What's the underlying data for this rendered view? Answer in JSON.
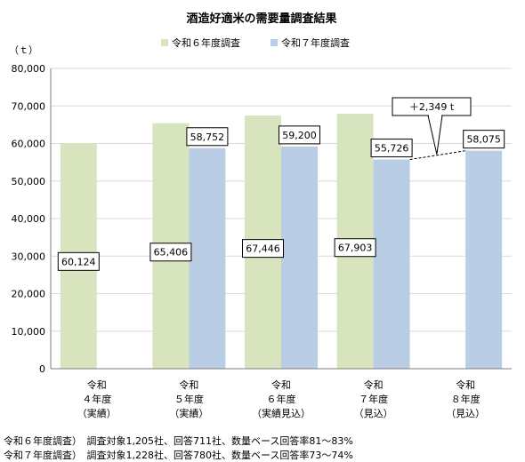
{
  "chart_data": {
    "type": "bar",
    "title": "酒造好適米の需要量調査結果",
    "ylabel": "（ｔ）",
    "ylim": [
      0,
      80000
    ],
    "yticks": [
      0,
      10000,
      20000,
      30000,
      40000,
      50000,
      60000,
      70000,
      80000
    ],
    "ytick_labels": [
      "0",
      "10,000",
      "20,000",
      "30,000",
      "40,000",
      "50,000",
      "60,000",
      "70,000",
      "80,000"
    ],
    "grid": true,
    "legend_position": "top",
    "categories": [
      [
        "令和",
        "４年度",
        "（実績）"
      ],
      [
        "令和",
        "５年度",
        "（実績）"
      ],
      [
        "令和",
        "６年度",
        "（実績見込）"
      ],
      [
        "令和",
        "７年度",
        "（見込）"
      ],
      [
        "令和",
        "８年度",
        "（見込）"
      ]
    ],
    "series": [
      {
        "name": "令和６年度調査",
        "color": "#d7e4bd",
        "values": [
          60124,
          65406,
          67446,
          67903,
          null
        ],
        "labels": [
          "60,124",
          "65,406",
          "67,446",
          "67,903",
          null
        ]
      },
      {
        "name": "令和７年度調査",
        "color": "#b9cde5",
        "values": [
          null,
          58752,
          59200,
          55726,
          58075
        ],
        "labels": [
          null,
          "58,752",
          "59,200",
          "55,726",
          "58,075"
        ]
      }
    ],
    "annotation": {
      "text": "＋2,349 t",
      "from_category": 3,
      "to_category": 4,
      "series": 1
    }
  },
  "notes": [
    "令和６年度調査）　調査対象1,205社、回答711社、数量ベース回答率81～83%",
    "令和７年度調査）　調査対象1,228社、回答780社、数量ベース回答率73～74%"
  ]
}
